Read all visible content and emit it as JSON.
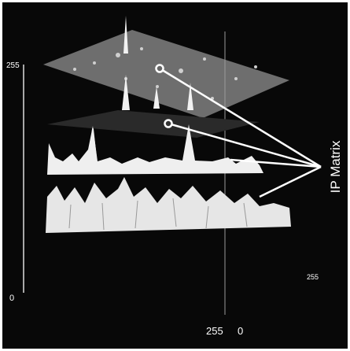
{
  "axis_labels": {
    "vertical_top": "255",
    "vertical_bottom": "0",
    "right_depth": "255",
    "bottom_first": "255",
    "bottom_second": "0"
  },
  "annotation": "IP Matrix"
}
